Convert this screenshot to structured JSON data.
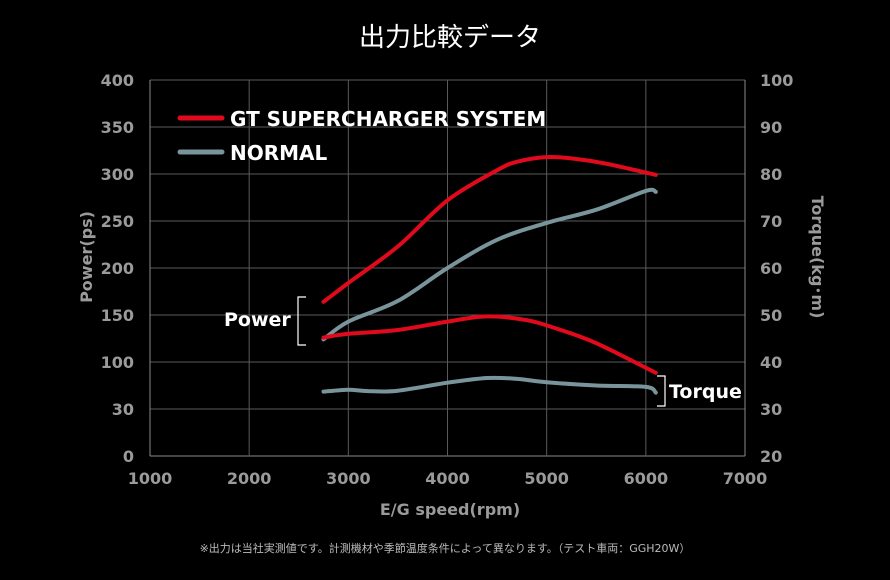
{
  "chart_data": {
    "type": "line",
    "title": "出力比較データ",
    "xlabel": "E/G speed(rpm)",
    "ylabel_left": "Power(ps)",
    "ylabel_right": "Torque(kg･m)",
    "xlim": [
      1000,
      7000
    ],
    "x_ticks": [
      "1000",
      "2000",
      "3000",
      "4000",
      "5000",
      "6000",
      "7000"
    ],
    "y_left_ticks": [
      "0",
      "30",
      "100",
      "150",
      "200",
      "250",
      "300",
      "350",
      "400"
    ],
    "y_right_ticks": [
      "20",
      "30",
      "40",
      "50",
      "60",
      "70",
      "80",
      "90",
      "100"
    ],
    "grid": true,
    "legend_position": "top-left",
    "colors": {
      "supercharger": "#e00a1c",
      "normal": "#7a949c"
    },
    "legend": [
      {
        "label": "GT SUPERCHARGER SYSTEM",
        "color": "#e00a1c"
      },
      {
        "label": "NORMAL",
        "color": "#7a949c"
      }
    ],
    "annotations": {
      "power": "Power",
      "torque": "Torque"
    },
    "series": [
      {
        "name": "GT SUPERCHARGER SYSTEM",
        "group": "Power",
        "axis": "left",
        "color": "#e00a1c",
        "x": [
          2750,
          3000,
          3500,
          4000,
          4500,
          4700,
          5000,
          5300,
          5600,
          6100
        ],
        "y": [
          164,
          184,
          223,
          272,
          304,
          313,
          318,
          316,
          311,
          299
        ]
      },
      {
        "name": "NORMAL",
        "group": "Power",
        "axis": "left",
        "color": "#7a949c",
        "x": [
          2750,
          3000,
          3500,
          4000,
          4500,
          5000,
          5500,
          6000,
          6100
        ],
        "y": [
          124,
          143,
          165,
          200,
          230,
          248,
          262,
          282,
          281
        ]
      },
      {
        "name": "GT SUPERCHARGER SYSTEM",
        "group": "Torque",
        "axis": "right",
        "color": "#e00a1c",
        "x": [
          2750,
          3000,
          3500,
          4000,
          4400,
          4800,
          5100,
          5500,
          6100
        ],
        "y": [
          45.2,
          46.0,
          46.8,
          48.6,
          49.7,
          48.9,
          47.1,
          44.0,
          37.7
        ]
      },
      {
        "name": "NORMAL",
        "group": "Torque",
        "axis": "right",
        "color": "#7a949c",
        "x": [
          2750,
          3000,
          3200,
          3500,
          4000,
          4400,
          4700,
          5000,
          5500,
          6000,
          6100
        ],
        "y": [
          33.7,
          34.1,
          33.8,
          33.9,
          35.6,
          36.6,
          36.4,
          35.7,
          35.0,
          34.7,
          33.5
        ]
      }
    ]
  },
  "footnote": "※出力は当社実測値です。計測機材や季節温度条件によって異なります。（テスト車両：GGH20W）"
}
